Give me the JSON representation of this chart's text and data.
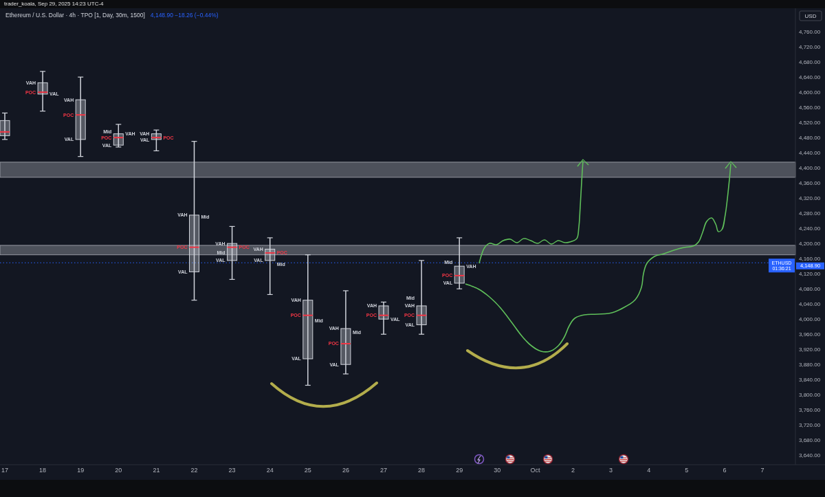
{
  "chart_data": {
    "type": "box",
    "title": "Ethereum / U.S. Dollar · 4h · TPO [1, Day, 30m, 1500]",
    "subtitle": "4,148.90 −18.26 (−0.44%)",
    "ylabel": "USD",
    "categories": [
      "17",
      "18",
      "19",
      "20",
      "21",
      "22",
      "23",
      "24",
      "25",
      "26",
      "27",
      "28",
      "29",
      "30",
      "Oct",
      "2",
      "3",
      "4",
      "5",
      "6",
      "7"
    ],
    "series": [
      {
        "color": "#d1d4dc",
        "boxes": [
          {
            "low": 4475,
            "q1": 4485,
            "median": 4495,
            "q3": 4525,
            "high": 4545
          },
          {
            "low": 4550,
            "q1": 4595,
            "median": 4600,
            "q3": 4625,
            "high": 4655
          },
          {
            "low": 4430,
            "q1": 4475,
            "median": 4540,
            "q3": 4580,
            "high": 4640
          },
          {
            "low": 4455,
            "q1": 4460,
            "median": 4480,
            "q3": 4490,
            "high": 4515
          },
          {
            "low": 4445,
            "q1": 4475,
            "median": 4480,
            "q3": 4490,
            "high": 4500
          },
          {
            "low": 4050,
            "q1": 4125,
            "median": 4190,
            "q3": 4275,
            "high": 4470
          },
          {
            "low": 4105,
            "q1": 4155,
            "median": 4190,
            "q3": 4200,
            "high": 4245
          },
          {
            "low": 4065,
            "q1": 4155,
            "median": 4175,
            "q3": 4185,
            "high": 4215
          },
          {
            "low": 3825,
            "q1": 3895,
            "median": 4010,
            "q3": 4050,
            "high": 4170
          },
          {
            "low": 3855,
            "q1": 3880,
            "median": 3935,
            "q3": 3975,
            "high": 4075
          },
          {
            "low": 3960,
            "q1": 4000,
            "median": 4010,
            "q3": 4035,
            "high": 4045
          },
          {
            "low": 3960,
            "q1": 3985,
            "median": 4010,
            "q3": 4035,
            "high": 4155
          },
          {
            "low": 4080,
            "q1": 4095,
            "median": 4115,
            "q3": 4140,
            "high": 4215
          },
          null,
          null,
          null,
          null,
          null,
          null,
          null,
          null
        ]
      }
    ],
    "ylim": [
      3615,
      4822
    ],
    "yticks": [
      {
        "value": 3640,
        "label": "3,640.00"
      },
      {
        "value": 3680,
        "label": "3,680.00"
      },
      {
        "value": 3720,
        "label": "3,720.00"
      },
      {
        "value": 3760,
        "label": "3,760.00"
      },
      {
        "value": 3800,
        "label": "3,800.00"
      },
      {
        "value": 3840,
        "label": "3,840.00"
      },
      {
        "value": 3880,
        "label": "3,880.00"
      },
      {
        "value": 3920,
        "label": "3,920.00"
      },
      {
        "value": 3960,
        "label": "3,960.00"
      },
      {
        "value": 4000,
        "label": "4,000.00"
      },
      {
        "value": 4040,
        "label": "4,040.00"
      },
      {
        "value": 4080,
        "label": "4,080.00"
      },
      {
        "value": 4120,
        "label": "4,120.00"
      },
      {
        "value": 4160,
        "label": "4,160.00"
      },
      {
        "value": 4200,
        "label": "4,200.00"
      },
      {
        "value": 4240,
        "label": "4,240.00"
      },
      {
        "value": 4280,
        "label": "4,280.00"
      },
      {
        "value": 4320,
        "label": "4,320.00"
      },
      {
        "value": 4360,
        "label": "4,360.00"
      },
      {
        "value": 4400,
        "label": "4,400.00"
      },
      {
        "value": 4440,
        "label": "4,440.00"
      },
      {
        "value": 4480,
        "label": "4,480.00"
      },
      {
        "value": 4520,
        "label": "4,520.00"
      },
      {
        "value": 4560,
        "label": "4,560.00"
      },
      {
        "value": 4600,
        "label": "4,600.00"
      },
      {
        "value": 4640,
        "label": "4,640.00"
      },
      {
        "value": 4680,
        "label": "4,680.00"
      },
      {
        "value": 4720,
        "label": "4,720.00"
      },
      {
        "value": 4760,
        "label": "4,760.00"
      }
    ],
    "bands": [
      {
        "axis": "y",
        "from": 4375,
        "to": 4415,
        "color": "#9598a1"
      },
      {
        "axis": "y",
        "from": 4170,
        "to": 4195,
        "color": "#9598a1"
      }
    ],
    "ref_lines": [
      {
        "axis": "y",
        "value": 4148.9,
        "label": "ETHUSD",
        "color": "#2962ff",
        "line_style": "dotted"
      }
    ],
    "annotations": [
      "trader_koala, Sep 29, 2025 14:23 UTC-4",
      "4,148.90",
      "01:36:21",
      {
        "text": "VAH",
        "x": "18",
        "y": 4625
      },
      {
        "text": "POC",
        "x": "18",
        "y": 4600
      },
      {
        "text": "VAL",
        "x": "18",
        "y": 4595
      },
      {
        "text": "VAH",
        "x": "19",
        "y": 4580
      },
      {
        "text": "POC",
        "x": "19",
        "y": 4540
      },
      {
        "text": "VAL",
        "x": "19",
        "y": 4475
      },
      {
        "text": "Mid",
        "x": "20",
        "y": 4495
      },
      {
        "text": "VAH",
        "x": "20",
        "y": 4490
      },
      {
        "text": "POC",
        "x": "20",
        "y": 4480
      },
      {
        "text": "VAL",
        "x": "20",
        "y": 4460
      },
      {
        "text": "VAH",
        "x": "21",
        "y": 4490
      },
      {
        "text": "POC",
        "x": "21",
        "y": 4480
      },
      {
        "text": "VAL",
        "x": "21",
        "y": 4475
      },
      {
        "text": "VAH",
        "x": "22",
        "y": 4275
      },
      {
        "text": "Mid",
        "x": "22",
        "y": 4270
      },
      {
        "text": "POC",
        "x": "22",
        "y": 4190
      },
      {
        "text": "VAL",
        "x": "22",
        "y": 4125
      },
      {
        "text": "VAH",
        "x": "23",
        "y": 4200
      },
      {
        "text": "POC",
        "x": "23",
        "y": 4190
      },
      {
        "text": "Mid",
        "x": "23",
        "y": 4175
      },
      {
        "text": "VAL",
        "x": "23",
        "y": 4155
      },
      {
        "text": "VAH",
        "x": "24",
        "y": 4185
      },
      {
        "text": "POC",
        "x": "24",
        "y": 4175
      },
      {
        "text": "VAL",
        "x": "24",
        "y": 4155
      },
      {
        "text": "Mid",
        "x": "24",
        "y": 4145
      },
      {
        "text": "VAH",
        "x": "25",
        "y": 4050
      },
      {
        "text": "POC",
        "x": "25",
        "y": 4010
      },
      {
        "text": "Mid",
        "x": "25",
        "y": 3995
      },
      {
        "text": "VAL",
        "x": "25",
        "y": 3895
      },
      {
        "text": "VAH",
        "x": "26",
        "y": 3975
      },
      {
        "text": "Mid",
        "x": "26",
        "y": 3965
      },
      {
        "text": "POC",
        "x": "26",
        "y": 3935
      },
      {
        "text": "VAL",
        "x": "26",
        "y": 3880
      },
      {
        "text": "VAH",
        "x": "27",
        "y": 4035
      },
      {
        "text": "POC",
        "x": "27",
        "y": 4010
      },
      {
        "text": "VAL",
        "x": "27",
        "y": 4000
      },
      {
        "text": "Mid",
        "x": "28",
        "y": 4055
      },
      {
        "text": "VAH",
        "x": "28",
        "y": 4035
      },
      {
        "text": "POC",
        "x": "28",
        "y": 4010
      },
      {
        "text": "VAL",
        "x": "28",
        "y": 3985
      },
      {
        "text": "Mid",
        "x": "29",
        "y": 4150
      },
      {
        "text": "VAH",
        "x": "29",
        "y": 4140
      },
      {
        "text": "POC",
        "x": "29",
        "y": 4115
      },
      {
        "text": "VAL",
        "x": "29",
        "y": 4095
      }
    ]
  }
}
